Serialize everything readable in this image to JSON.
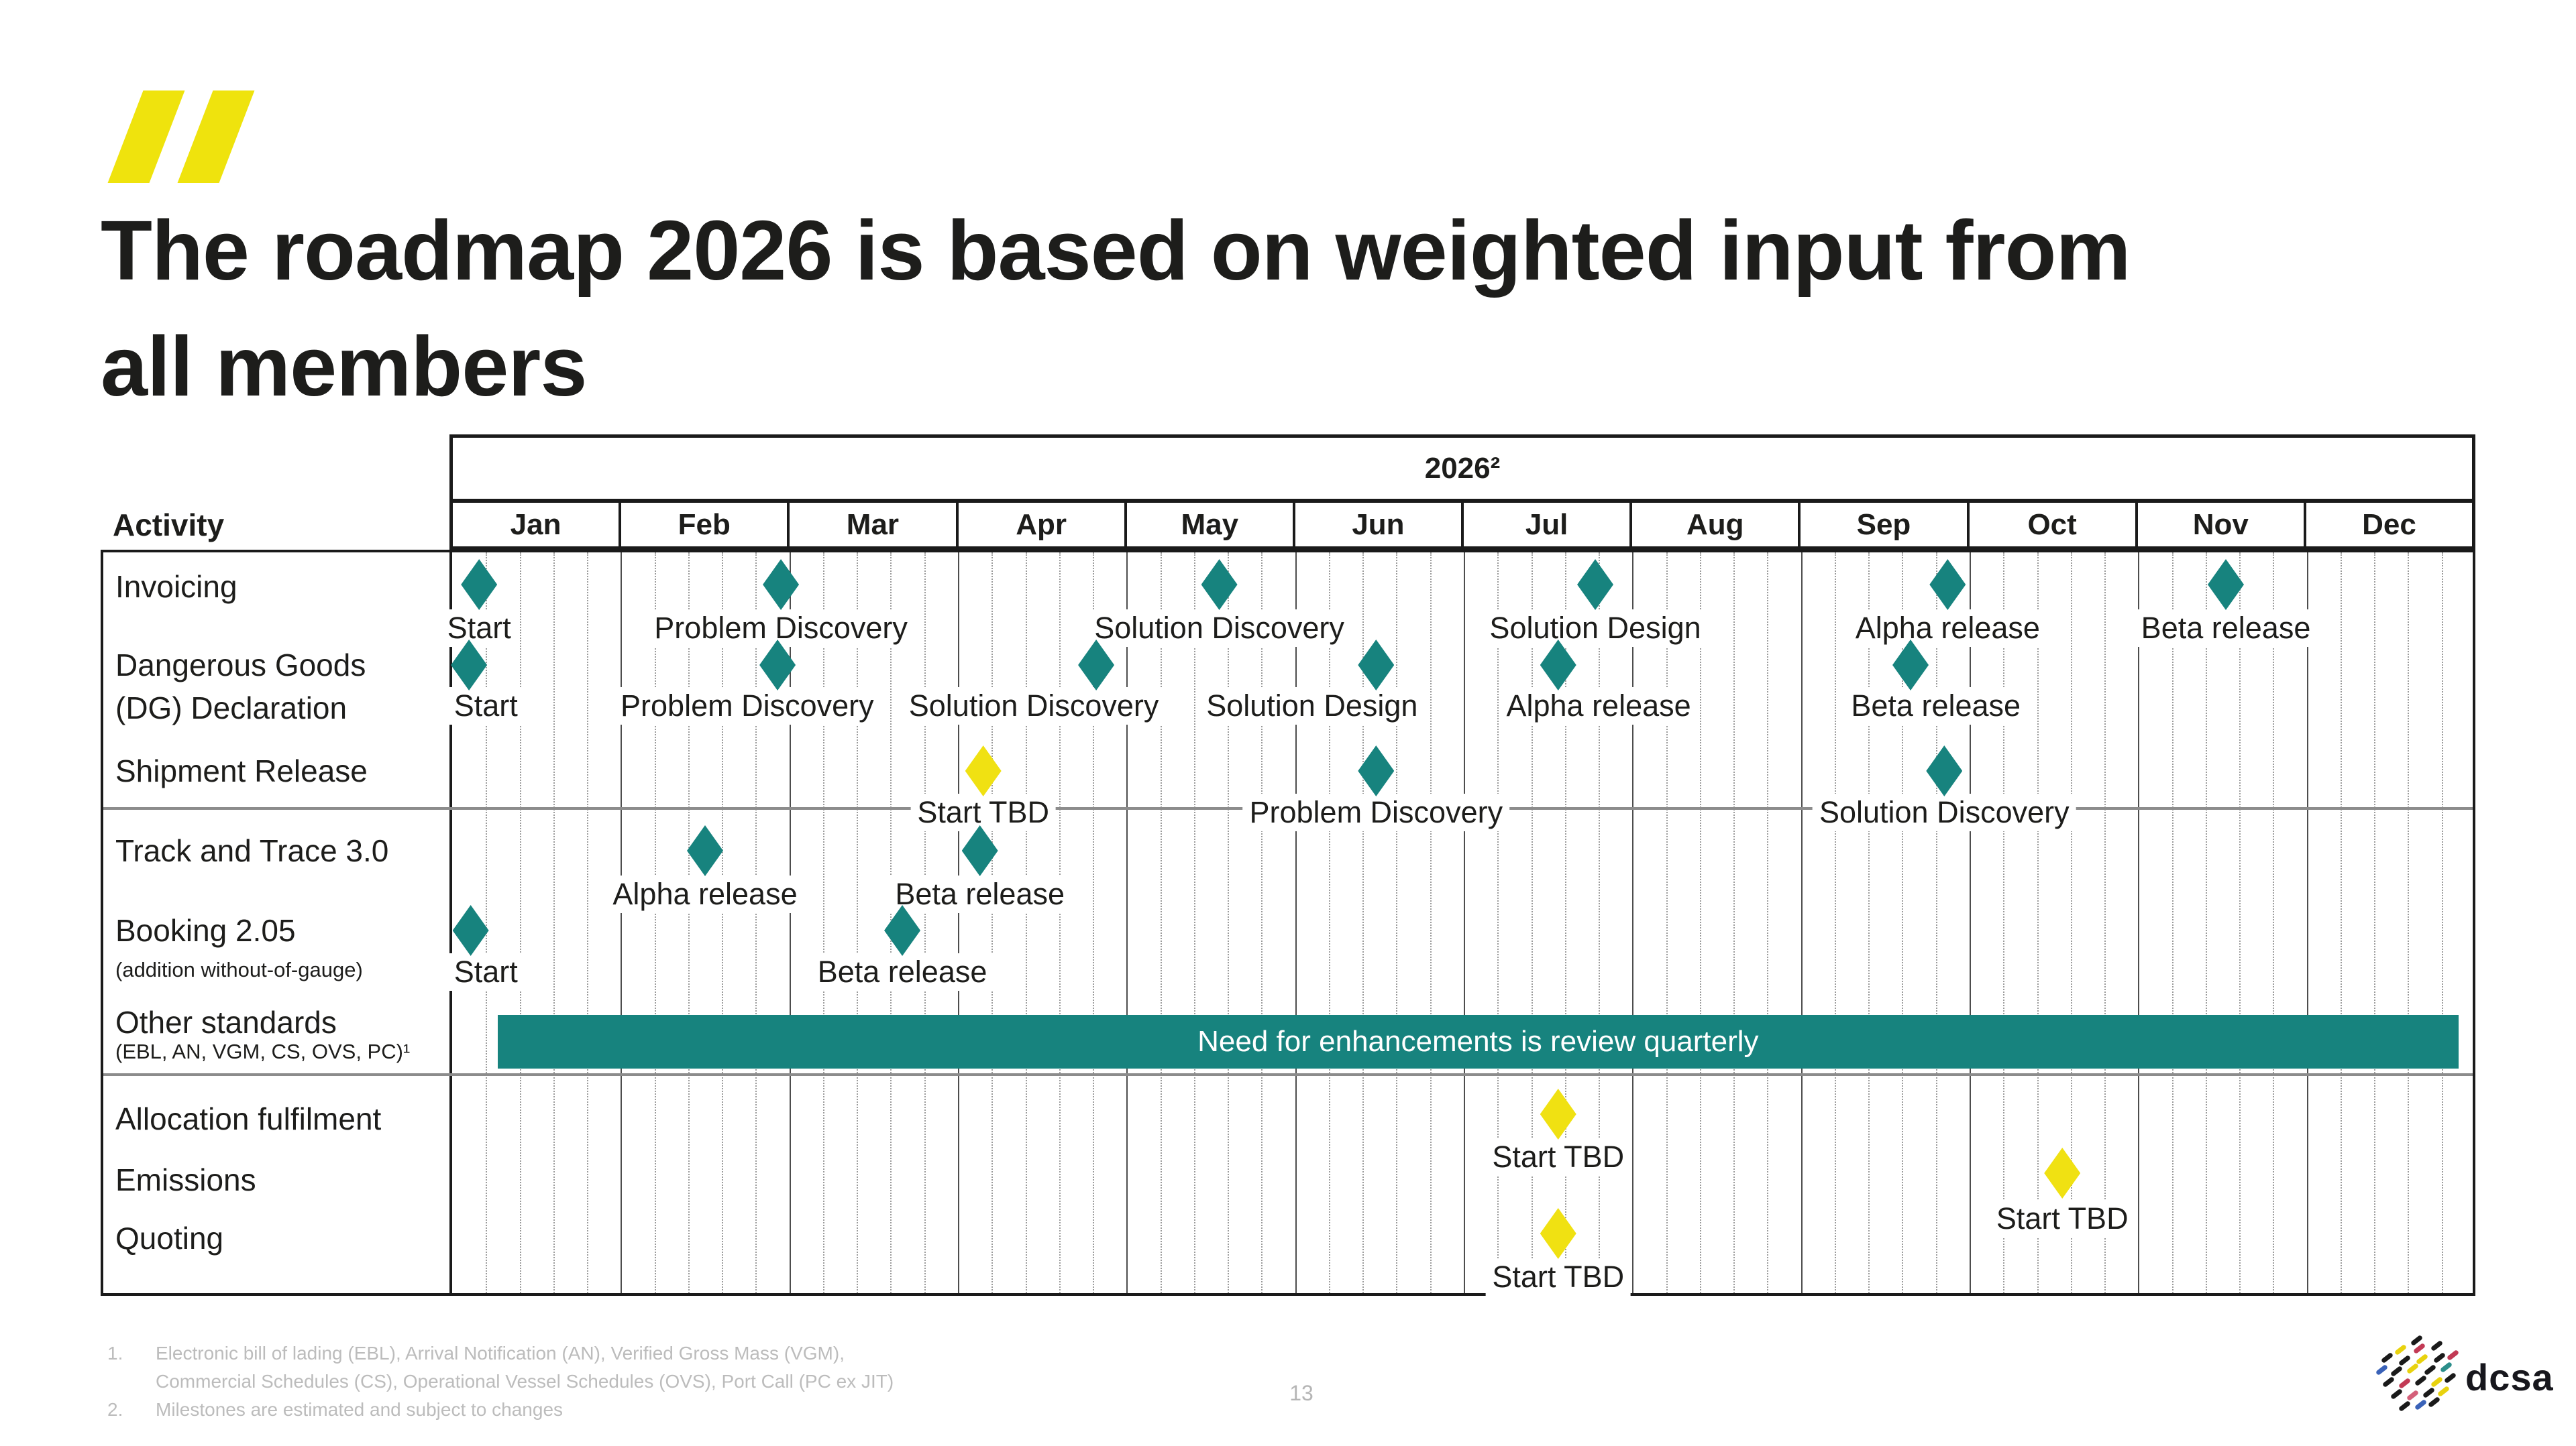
{
  "header": {
    "title_line1": "The roadmap 2026 is based on weighted input from",
    "title_line2": "all members"
  },
  "chart_data": {
    "type": "gantt",
    "title": "2026²",
    "activity_header": "Activity",
    "months": [
      "Jan",
      "Feb",
      "Mar",
      "Apr",
      "May",
      "Jun",
      "Jul",
      "Aug",
      "Sep",
      "Oct",
      "Nov",
      "Dec"
    ],
    "colors": {
      "confirmed": "#17837E",
      "tbd": "#F0E112",
      "bar": "#17837E"
    },
    "rows": [
      {
        "activity": "Invoicing",
        "milestones": [
          {
            "label": "Start",
            "month": 0.16,
            "status": "confirmed"
          },
          {
            "label": "Problem Discovery",
            "month": 1.95,
            "status": "confirmed"
          },
          {
            "label": "Solution Discovery",
            "month": 4.55,
            "status": "confirmed"
          },
          {
            "label": "Solution Design",
            "month": 6.78,
            "status": "confirmed"
          },
          {
            "label": "Alpha release",
            "month": 8.87,
            "status": "confirmed"
          },
          {
            "label": "Beta release",
            "month": 10.52,
            "status": "confirmed"
          }
        ]
      },
      {
        "activity_lines": [
          "Dangerous Goods",
          "(DG) Declaration"
        ],
        "milestones": [
          {
            "label": "Start",
            "month": 0.1,
            "label_month": 0.2,
            "status": "confirmed"
          },
          {
            "label": "Problem Discovery",
            "month": 1.93,
            "label_month": 1.75,
            "status": "confirmed"
          },
          {
            "label": "Solution Discovery",
            "month": 3.82,
            "label_month": 3.45,
            "status": "confirmed"
          },
          {
            "label": "Solution Design",
            "month": 5.48,
            "label_month": 5.1,
            "status": "confirmed"
          },
          {
            "label": "Alpha release",
            "month": 6.56,
            "label_month": 6.8,
            "status": "confirmed"
          },
          {
            "label": "Beta release",
            "month": 8.65,
            "label_month": 8.8,
            "status": "confirmed"
          }
        ]
      },
      {
        "activity": "Shipment Release",
        "milestones": [
          {
            "label": "Start TBD",
            "month": 3.15,
            "status": "tbd"
          },
          {
            "label": "Problem Discovery",
            "month": 5.48,
            "status": "confirmed"
          },
          {
            "label": "Solution Discovery",
            "month": 8.85,
            "status": "confirmed"
          }
        ]
      },
      {
        "activity": "Track and Trace 3.0",
        "milestones": [
          {
            "label": "Alpha release",
            "month": 1.5,
            "status": "confirmed"
          },
          {
            "label": "Beta release",
            "month": 3.13,
            "status": "confirmed"
          }
        ]
      },
      {
        "activity": "Booking 2.05",
        "subtitle": "(addition without-of-gauge)",
        "milestones": [
          {
            "label": "Start",
            "month": 0.11,
            "label_month": 0.2,
            "status": "confirmed"
          },
          {
            "label": "Beta release",
            "month": 2.67,
            "status": "confirmed"
          }
        ]
      },
      {
        "activity": "Other standards",
        "subtitle": "(EBL, AN, VGM, CS, OVS, PC)¹",
        "bar": {
          "start_month": 0.27,
          "end_month": 11.9,
          "label": "Need for enhancements is review quarterly"
        },
        "milestones": []
      },
      {
        "activity": "Allocation fulfilment",
        "milestones": [
          {
            "label": "Start TBD",
            "month": 6.56,
            "status": "tbd"
          }
        ]
      },
      {
        "activity": "Emissions",
        "milestones": [
          {
            "label": "Start TBD",
            "month": 9.55,
            "status": "tbd"
          }
        ]
      },
      {
        "activity": "Quoting",
        "milestones": [
          {
            "label": "Start TBD",
            "month": 6.56,
            "status": "tbd"
          }
        ]
      }
    ]
  },
  "footer": {
    "footnotes": [
      {
        "num": "1.",
        "lines": [
          "Electronic bill of lading (EBL), Arrival Notification (AN), Verified Gross Mass (VGM),",
          "Commercial Schedules (CS), Operational Vessel Schedules (OVS), Port Call (PC ex JIT)"
        ]
      },
      {
        "num": "2.",
        "lines": [
          "Milestones are estimated and subject to changes"
        ]
      }
    ],
    "page_number": "13",
    "logo": {
      "text": "dcsa",
      "dot_colors": [
        "#1a1a1a",
        "#e8d20e",
        "#c23a55",
        "#3a62b8",
        "#2b8e8a",
        "#d4607a"
      ]
    }
  }
}
